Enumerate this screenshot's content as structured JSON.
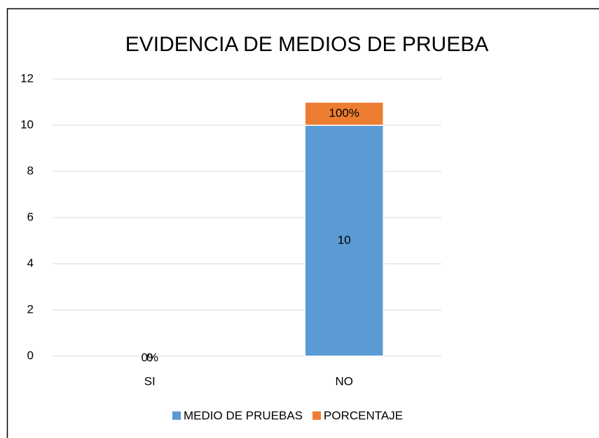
{
  "chart_data": {
    "type": "stacked_bar",
    "title": "EVIDENCIA DE MEDIOS DE PRUEBA",
    "categories": [
      "SI",
      "NO"
    ],
    "series": [
      {
        "name": "MEDIO DE PRUEBAS",
        "color": "#5b9bd5",
        "values": [
          0,
          10
        ]
      },
      {
        "name": "PORCENTAJE",
        "color": "#ed7d31",
        "values": [
          0,
          1
        ],
        "value_labels": [
          "0%",
          "100%"
        ]
      }
    ],
    "ylim": [
      0,
      12
    ],
    "yticks": [
      0,
      2,
      4,
      6,
      8,
      10,
      12
    ],
    "grid": true,
    "legend": "bottom"
  }
}
